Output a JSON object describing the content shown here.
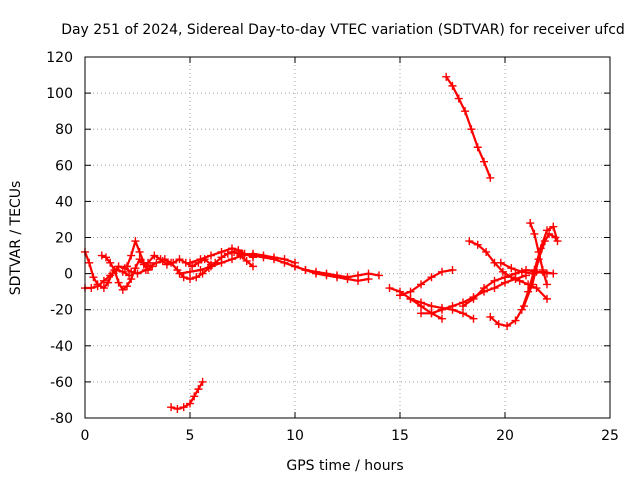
{
  "chart_data": {
    "type": "scatter",
    "title": "Day 251 of 2024, Sidereal Day-to-day VTEC variation (SDTVAR) for receiver ufcd",
    "xlabel": "GPS time / hours",
    "ylabel": "SDTVAR / TECUs",
    "xlim": [
      0,
      25
    ],
    "ylim": [
      -80,
      120
    ],
    "xticks": [
      0,
      5,
      10,
      15,
      20,
      25
    ],
    "yticks": [
      -80,
      -60,
      -40,
      -20,
      0,
      20,
      40,
      60,
      80,
      100,
      120
    ],
    "grid": true,
    "marker": "+",
    "color": "#ff0000",
    "series": [
      {
        "name": "s1",
        "x": [
          0.0,
          0.2,
          0.4,
          0.6,
          0.9,
          1.1,
          1.3,
          1.6,
          1.9,
          2.2,
          2.5,
          2.9
        ],
        "y": [
          12,
          6,
          -2,
          -6,
          -8,
          -5,
          0,
          4,
          3,
          1,
          0,
          2
        ]
      },
      {
        "name": "s2",
        "x": [
          0.0,
          0.3,
          0.6,
          0.9,
          1.2,
          1.5,
          1.8,
          2.1
        ],
        "y": [
          -8,
          -8,
          -7,
          -4,
          -1,
          2,
          1,
          -1
        ]
      },
      {
        "name": "s3",
        "x": [
          0.8,
          1.0,
          1.2,
          1.4,
          1.6,
          1.8,
          2.0,
          2.2,
          2.4,
          2.6,
          2.8,
          3.0,
          3.2
        ],
        "y": [
          10,
          9,
          6,
          2,
          -5,
          -9,
          -7,
          -3,
          3,
          8,
          5,
          2,
          4
        ]
      },
      {
        "name": "s4",
        "x": [
          2.0,
          2.2,
          2.4,
          2.6,
          2.8,
          3.1,
          3.4,
          3.7
        ],
        "y": [
          4,
          10,
          18,
          12,
          6,
          4,
          6,
          7
        ]
      },
      {
        "name": "s5",
        "x": [
          3.0,
          3.3,
          3.6,
          3.9,
          4.2,
          4.5,
          4.8,
          5.1,
          5.4,
          5.7,
          6.0
        ],
        "y": [
          6,
          10,
          8,
          5,
          6,
          8,
          6,
          4,
          6,
          8,
          5
        ]
      },
      {
        "name": "s6",
        "x": [
          3.8,
          4.1,
          4.4,
          4.7,
          5.0,
          5.3,
          5.6,
          5.9,
          6.2,
          6.5,
          6.8,
          7.1,
          7.4,
          7.7,
          8.0
        ],
        "y": [
          8,
          6,
          2,
          -2,
          -3,
          -2,
          0,
          3,
          6,
          9,
          11,
          12,
          10,
          7,
          4
        ]
      },
      {
        "name": "s7",
        "x": [
          4.5,
          5.0,
          5.5,
          6.0,
          6.5,
          7.0,
          7.5,
          8.0,
          8.5,
          9.0,
          9.5,
          10.0
        ],
        "y": [
          0,
          1,
          2,
          4,
          6,
          8,
          10,
          11,
          10,
          9,
          8,
          6
        ]
      },
      {
        "name": "s8",
        "x": [
          5.0,
          5.5,
          6.0,
          6.5,
          7.0,
          7.3,
          7.6,
          8.0
        ],
        "y": [
          6,
          8,
          10,
          12,
          14,
          13,
          11,
          9
        ]
      },
      {
        "name": "s9",
        "x": [
          7.0,
          7.5,
          8.0,
          8.5,
          9.0,
          9.5,
          10.0,
          10.5,
          11.0,
          11.5,
          12.0,
          12.5,
          13.0,
          13.5
        ],
        "y": [
          12,
          11,
          10,
          9,
          8,
          6,
          4,
          2,
          0,
          -1,
          -2,
          -3,
          -4,
          -3
        ]
      },
      {
        "name": "s10",
        "x": [
          10.0,
          10.5,
          11.0,
          11.5,
          12.0,
          12.5,
          13.0,
          13.5,
          14.0
        ],
        "y": [
          4,
          2,
          1,
          0,
          -1,
          -2,
          -1,
          0,
          -1
        ]
      },
      {
        "name": "s11",
        "x": [
          4.1,
          4.4,
          4.7,
          5.0,
          5.2,
          5.4,
          5.6
        ],
        "y": [
          -74,
          -75,
          -74,
          -72,
          -68,
          -64,
          -60
        ]
      },
      {
        "name": "s12",
        "x": [
          14.5,
          15.0,
          15.5,
          16.0,
          16.5,
          17.0
        ],
        "y": [
          -8,
          -10,
          -14,
          -18,
          -22,
          -25
        ]
      },
      {
        "name": "s13",
        "x": [
          15.0,
          15.5,
          16.0,
          16.5,
          17.0,
          17.5
        ],
        "y": [
          -12,
          -10,
          -6,
          -2,
          1,
          2
        ]
      },
      {
        "name": "s14",
        "x": [
          15.5,
          16.0,
          16.5,
          17.0,
          17.5,
          18.0,
          18.5
        ],
        "y": [
          -14,
          -16,
          -18,
          -19,
          -20,
          -22,
          -25
        ]
      },
      {
        "name": "s15",
        "x": [
          16.0,
          16.5,
          17.0,
          17.5,
          18.0,
          18.5,
          19.0,
          19.5,
          20.0,
          20.5,
          21.0
        ],
        "y": [
          -22,
          -22,
          -20,
          -18,
          -16,
          -13,
          -10,
          -8,
          -5,
          -3,
          -1
        ]
      },
      {
        "name": "s16",
        "x": [
          17.2,
          17.5,
          17.8,
          18.1,
          18.4,
          18.7,
          19.0,
          19.3
        ],
        "y": [
          109,
          104,
          97,
          90,
          80,
          70,
          62,
          53
        ]
      },
      {
        "name": "s17",
        "x": [
          18.0,
          18.5,
          19.0,
          19.5,
          20.0,
          20.5,
          21.0,
          21.5,
          22.0
        ],
        "y": [
          -18,
          -14,
          -8,
          -4,
          -2,
          0,
          2,
          1,
          0
        ]
      },
      {
        "name": "s18",
        "x": [
          18.3,
          18.7,
          19.1,
          19.5,
          19.9,
          20.3,
          20.7,
          21.1,
          21.5,
          22.0
        ],
        "y": [
          18,
          16,
          12,
          6,
          1,
          -2,
          -4,
          -6,
          -8,
          -14
        ]
      },
      {
        "name": "s19",
        "x": [
          19.3,
          19.7,
          20.1,
          20.5,
          20.9,
          21.3,
          21.6,
          21.9,
          22.1,
          22.4
        ],
        "y": [
          -24,
          -28,
          -29,
          -26,
          -18,
          -6,
          8,
          18,
          22,
          20
        ]
      },
      {
        "name": "s20",
        "x": [
          19.8,
          20.3,
          20.8,
          21.3,
          21.8,
          22.3
        ],
        "y": [
          6,
          3,
          1,
          0,
          1,
          0
        ]
      },
      {
        "name": "s21",
        "x": [
          20.8,
          21.1,
          21.4,
          21.7,
          22.0,
          22.3,
          22.5
        ],
        "y": [
          -20,
          -10,
          2,
          14,
          24,
          26,
          18
        ]
      },
      {
        "name": "s22",
        "x": [
          21.2,
          21.4,
          21.6,
          21.8,
          22.0
        ],
        "y": [
          28,
          22,
          12,
          2,
          -6
        ]
      }
    ]
  }
}
